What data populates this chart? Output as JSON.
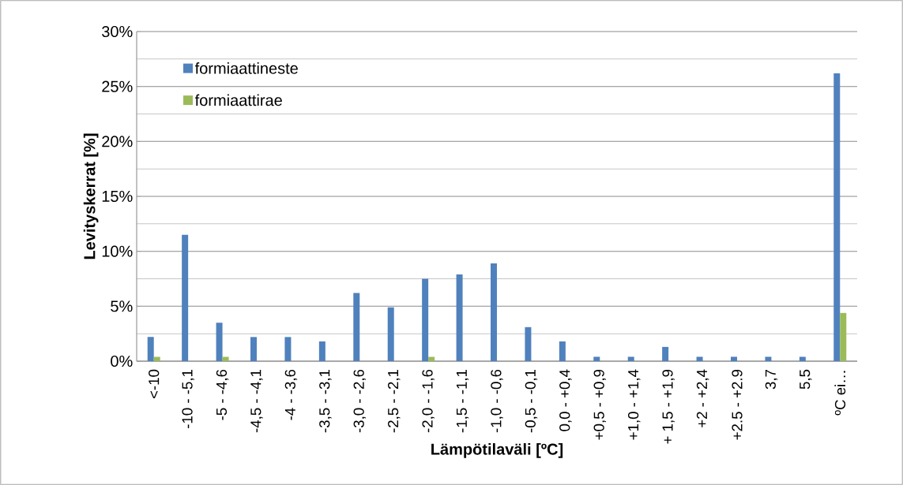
{
  "chart_data": {
    "type": "bar",
    "xlabel": "Lämpötilaväli [ºC]",
    "ylabel": "Levityskerrat [%]",
    "categories": [
      "<-10",
      "-10 - -5,1",
      "-5 - -4,6",
      "-4,5 - -4,1",
      "-4 - -3,6",
      "-3,5 - -3,1",
      "-3,0 - -2,6",
      "-2,5 - -2,1",
      "-2,0 - -1,6",
      "-1,5 - -1,1",
      "-1,0 - -0,6",
      "-0,5 - -0,1",
      "0,0 - +0,4",
      "+0,5 - +0,9",
      "+1,0 - +1,4",
      "+ 1,5 - +1,9",
      "+2 - +2,4",
      "+2.5 - +2.9",
      "3,7",
      "5,5",
      "ºC ei…"
    ],
    "series": [
      {
        "name": "formiaattineste",
        "color": "#4f81bd",
        "values": [
          2.2,
          11.5,
          3.5,
          2.2,
          2.2,
          1.8,
          6.2,
          4.9,
          7.5,
          7.9,
          8.9,
          3.1,
          1.8,
          0.4,
          0.4,
          1.3,
          0.4,
          0.4,
          0.4,
          0.4,
          26.2
        ]
      },
      {
        "name": "formiaattirae",
        "color": "#9bbb59",
        "values": [
          0.4,
          0,
          0.4,
          0,
          0,
          0,
          0,
          0,
          0.4,
          0,
          0,
          0,
          0,
          0,
          0,
          0,
          0,
          0,
          0,
          0,
          4.4
        ]
      }
    ],
    "ylim": [
      0,
      30
    ],
    "yticks": [
      {
        "value": 0,
        "label": "0%"
      },
      {
        "value": 5,
        "label": "5%"
      },
      {
        "value": 10,
        "label": "10%"
      },
      {
        "value": 15,
        "label": "15%"
      },
      {
        "value": 20,
        "label": "20%"
      },
      {
        "value": 25,
        "label": "25%"
      },
      {
        "value": 30,
        "label": "30%"
      }
    ],
    "grid": "y",
    "legend": "top left"
  }
}
